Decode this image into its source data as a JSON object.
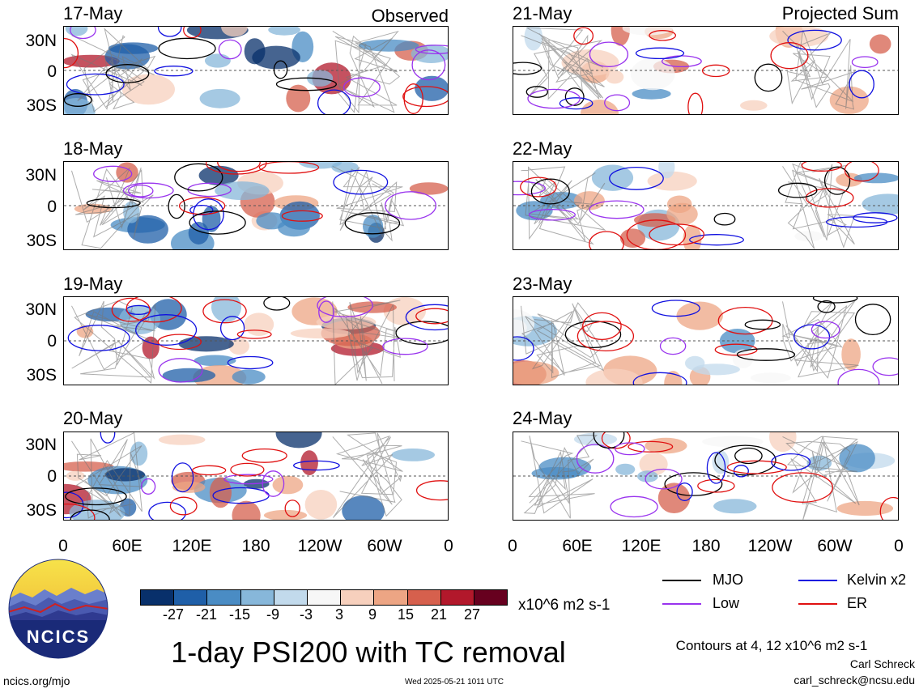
{
  "panels_left": [
    {
      "date": "17-May",
      "title": "Observed"
    },
    {
      "date": "18-May",
      "title": ""
    },
    {
      "date": "19-May",
      "title": ""
    },
    {
      "date": "20-May",
      "title": ""
    }
  ],
  "panels_right": [
    {
      "date": "21-May",
      "title": "Projected Sum"
    },
    {
      "date": "22-May",
      "title": ""
    },
    {
      "date": "23-May",
      "title": ""
    },
    {
      "date": "24-May",
      "title": ""
    }
  ],
  "lat_labels": [
    "30N",
    "0",
    "30S"
  ],
  "lon_labels": [
    "0",
    "60E",
    "120E",
    "180",
    "120W",
    "60W",
    "0"
  ],
  "colorbar": {
    "ticks": [
      "-27",
      "-21",
      "-15",
      "-9",
      "-3",
      "3",
      "9",
      "15",
      "21",
      "27"
    ],
    "units": "x10^6 m2 s-1",
    "colors": [
      "#08306b",
      "#1f5fa8",
      "#4a8cc4",
      "#87b7da",
      "#c2daec",
      "#f7f7f7",
      "#f7d0bd",
      "#eda584",
      "#d6604d",
      "#b2182b",
      "#67001f"
    ]
  },
  "legend": {
    "items": [
      {
        "label": "MJO",
        "color": "#000000"
      },
      {
        "label": "Kelvin x2",
        "color": "#1010e0"
      },
      {
        "label": "Low",
        "color": "#9933ee"
      },
      {
        "label": "ER",
        "color": "#e01010"
      }
    ],
    "contours_note": "Contours at 4, 12 x10^6 m2 s-1"
  },
  "main_title": "1-day PSI200 with TC removal",
  "logo_text": "NCICS",
  "footer": {
    "website": "ncics.org/mjo",
    "timestamp": "Wed 2025-05-21 1011 UTC",
    "author": "Carl Schreck",
    "email": "carl_schreck@ncsu.edu"
  }
}
